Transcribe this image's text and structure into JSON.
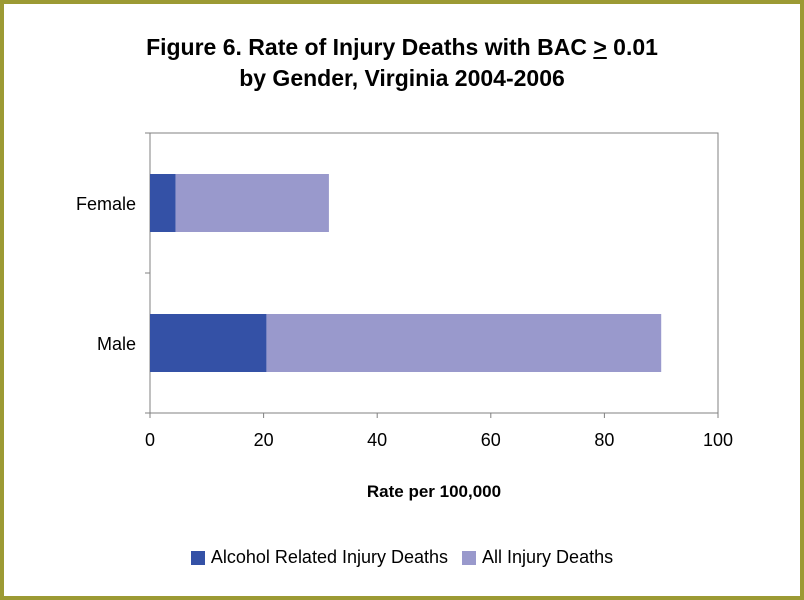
{
  "chart_data": {
    "type": "bar",
    "orientation": "horizontal",
    "stacked": true,
    "title_line1_prefix": "Figure 6. Rate of Injury Deaths with BAC ",
    "title_line1_symbol": ">",
    "title_line1_suffix": " 0.01",
    "title_line2": "by Gender, Virginia 2004-2006",
    "categories": [
      "Female",
      "Male"
    ],
    "series": [
      {
        "name": "Alcohol Related Injury Deaths",
        "values": [
          4.5,
          20.5
        ],
        "color": "#3451a6"
      },
      {
        "name": "All Injury Deaths",
        "values": [
          27,
          69.5
        ],
        "color": "#9999cc"
      }
    ],
    "xlabel": "Rate per 100,000",
    "xlim": [
      0,
      100
    ],
    "xticks": [
      0,
      20,
      40,
      60,
      80,
      100
    ],
    "grid": false,
    "legend_position": "bottom"
  },
  "colors": {
    "frame": "#9c9a34",
    "plot_border": "#808080"
  }
}
